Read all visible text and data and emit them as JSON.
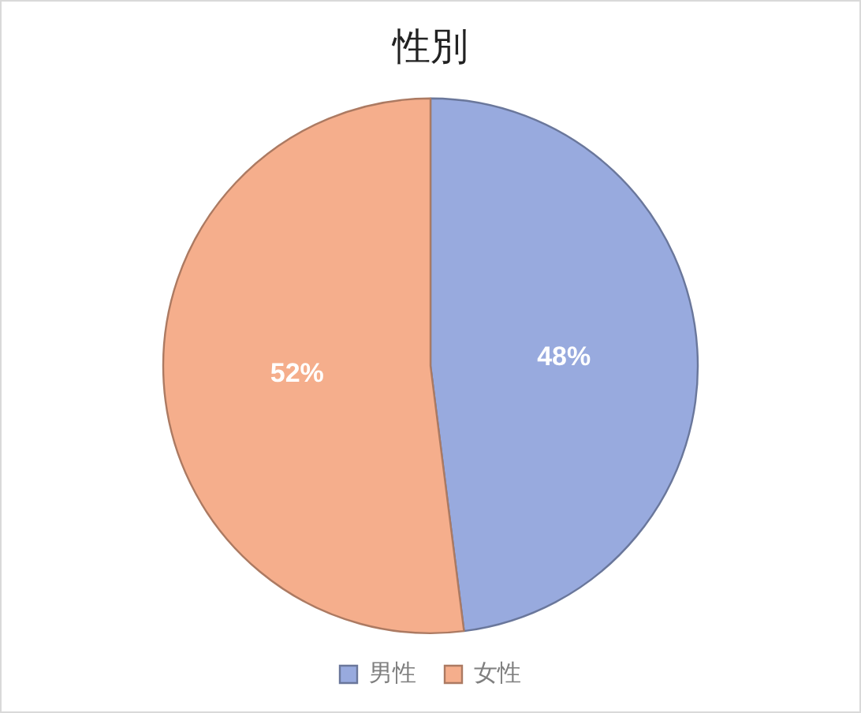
{
  "chart_data": {
    "type": "pie",
    "title": "性別",
    "categories": [
      "男性",
      "女性"
    ],
    "values": [
      48,
      52
    ],
    "colors": [
      "#98aade",
      "#f5ae8c"
    ],
    "value_labels": [
      "48%",
      "52%"
    ],
    "legend": "bottom"
  }
}
